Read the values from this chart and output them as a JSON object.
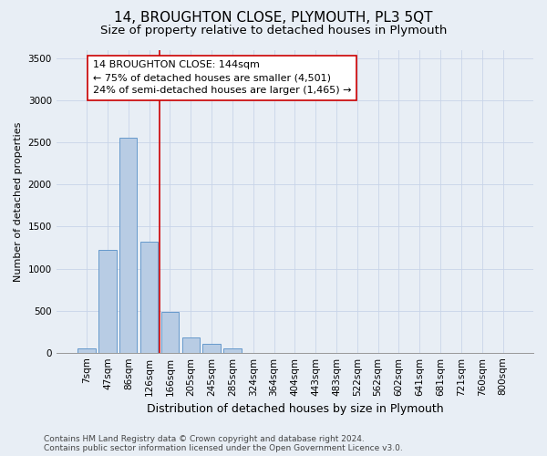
{
  "title": "14, BROUGHTON CLOSE, PLYMOUTH, PL3 5QT",
  "subtitle": "Size of property relative to detached houses in Plymouth",
  "xlabel": "Distribution of detached houses by size in Plymouth",
  "ylabel": "Number of detached properties",
  "categories": [
    "7sqm",
    "47sqm",
    "86sqm",
    "126sqm",
    "166sqm",
    "205sqm",
    "245sqm",
    "285sqm",
    "324sqm",
    "364sqm",
    "404sqm",
    "443sqm",
    "483sqm",
    "522sqm",
    "562sqm",
    "602sqm",
    "641sqm",
    "681sqm",
    "721sqm",
    "760sqm",
    "800sqm"
  ],
  "values": [
    50,
    1220,
    2560,
    1320,
    490,
    185,
    105,
    50,
    0,
    0,
    0,
    0,
    0,
    0,
    0,
    0,
    0,
    0,
    0,
    0,
    0
  ],
  "bar_color": "#b8cce4",
  "bar_edge_color": "#6699cc",
  "vline_x": 3.5,
  "vline_color": "#cc0000",
  "annotation_line1": "14 BROUGHTON CLOSE: 144sqm",
  "annotation_line2": "← 75% of detached houses are smaller (4,501)",
  "annotation_line3": "24% of semi-detached houses are larger (1,465) →",
  "annotation_box_color": "#ffffff",
  "annotation_box_edge_color": "#cc0000",
  "ylim": [
    0,
    3600
  ],
  "yticks": [
    0,
    500,
    1000,
    1500,
    2000,
    2500,
    3000,
    3500
  ],
  "grid_color": "#c8d4e8",
  "background_color": "#e8eef5",
  "plot_bg_color": "#e8eef5",
  "footer_text": "Contains HM Land Registry data © Crown copyright and database right 2024.\nContains public sector information licensed under the Open Government Licence v3.0.",
  "title_fontsize": 11,
  "subtitle_fontsize": 9.5,
  "xlabel_fontsize": 9,
  "ylabel_fontsize": 8,
  "tick_fontsize": 7.5,
  "annotation_fontsize": 8,
  "footer_fontsize": 6.5
}
